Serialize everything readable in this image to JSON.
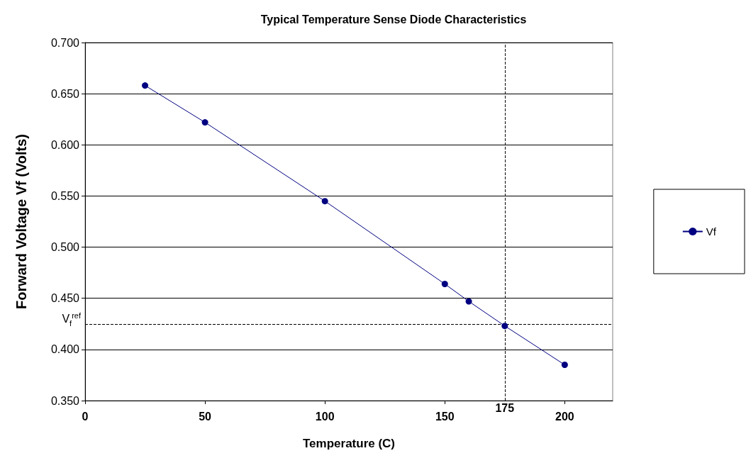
{
  "chart_data": {
    "type": "line",
    "title": "Typical Temperature Sense Diode Characteristics",
    "xlabel": "Temperature (C)",
    "ylabel": "Forward Voltage Vf (Volts)",
    "x": [
      25,
      50,
      100,
      150,
      160,
      175,
      200
    ],
    "series": [
      {
        "name": "Vf",
        "color": "#000080",
        "values": [
          0.658,
          0.622,
          0.545,
          0.464,
          0.447,
          0.423,
          0.385
        ]
      }
    ],
    "xlim": [
      0,
      220
    ],
    "xticks": [
      0,
      50,
      100,
      150,
      200
    ],
    "ylim": [
      0.35,
      0.7
    ],
    "yticks": [
      {
        "value": 0.35,
        "label": "0.350"
      },
      {
        "value": 0.4,
        "label": "0.400"
      },
      {
        "value": 0.45,
        "label": "0.450"
      },
      {
        "value": 0.5,
        "label": "0.500"
      },
      {
        "value": 0.55,
        "label": "0.550"
      },
      {
        "value": 0.6,
        "label": "0.600"
      },
      {
        "value": 0.65,
        "label": "0.650"
      },
      {
        "value": 0.7,
        "label": "0.700"
      }
    ],
    "ref_lines": [
      {
        "axis": "y",
        "value": 0.425,
        "label": "V$_{f}$$^{ref}$",
        "line_style": "dashed",
        "color": "#000000"
      },
      {
        "axis": "x",
        "value": 175,
        "label": "175",
        "line_style": "dashed",
        "color": "#000000"
      }
    ],
    "grid": "y",
    "legend": "right",
    "marker": "circle",
    "line_style": "solid"
  }
}
